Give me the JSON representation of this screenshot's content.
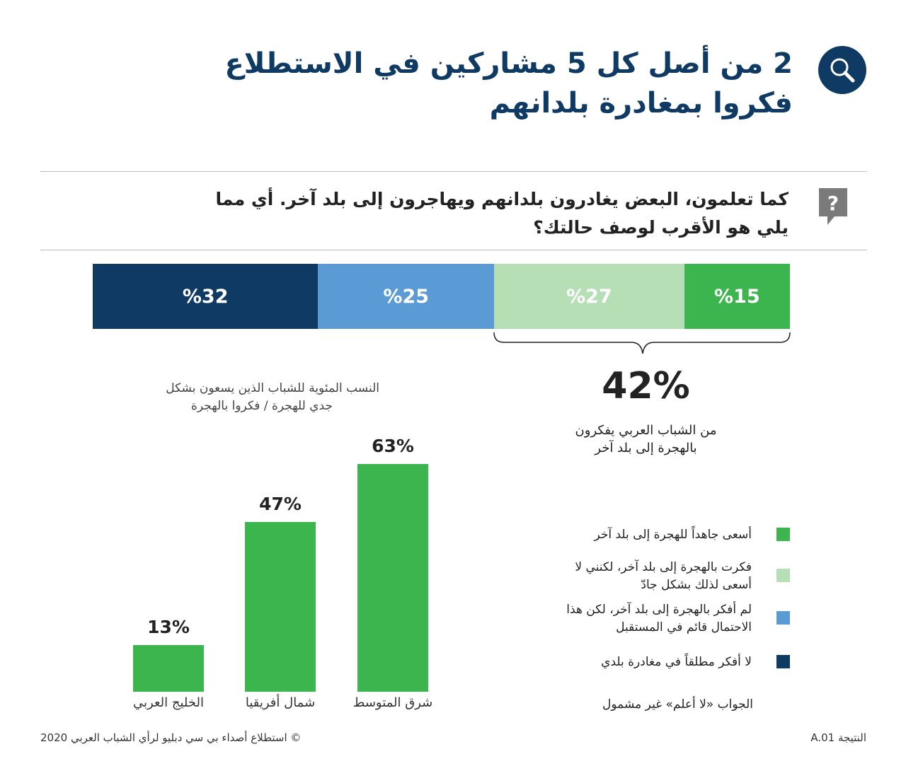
{
  "header": {
    "title_line1": "2 من أصل كل 5 مشاركين في الاستطلاع",
    "title_line2": "فكروا بمغادرة بلدانهم"
  },
  "question": {
    "line1": "كما تعلمون، البعض يغادرون بلدانهم ويهاجرون إلى بلد آخر. أي مما",
    "line2": "يلي هو الأقرب لوصف حالتك؟"
  },
  "highlight": {
    "value": "42%",
    "line1": "من الشباب العربي يفكرون",
    "line2": "بالهجرة إلى بلد آخر"
  },
  "colors": {
    "dark": "#0f3a64",
    "blue": "#5b9bd5",
    "light_green": "#b7dfb6",
    "green": "#3cb54f"
  },
  "chart_data": [
    {
      "type": "bar",
      "stacked": true,
      "segments": [
        {
          "label": "لا أفكر مطلقاً في مغادرة بلدي",
          "value": 32,
          "text": "%32",
          "color": "#0f3a64"
        },
        {
          "label": "لم أفكر بالهجرة إلى بلد آخر، لكن هذا الاحتمال قائم في المستقبل",
          "value": 25,
          "text": "%25",
          "color": "#5b9bd5"
        },
        {
          "label": "فكرت بالهجرة إلى بلد آخر، لكنني لا أسعى لذلك بشكل جادّ",
          "value": 27,
          "text": "%27",
          "color": "#b7dfb6"
        },
        {
          "label": "أسعى جاهداً للهجرة إلى بلد آخر",
          "value": 15,
          "text": "%15",
          "color": "#3cb54f"
        }
      ]
    },
    {
      "type": "bar",
      "title_line1": "النسب المئوية للشباب الذين يسعون بشكل",
      "title_line2": "جدي للهجرة / فكروا بالهجرة",
      "categories": [
        "الخليج العربي",
        "شمال أفريقيا",
        "شرق المتوسط"
      ],
      "values": [
        13,
        47,
        63
      ],
      "labels": [
        "13%",
        "47%",
        "63%"
      ],
      "ylim": [
        0,
        63
      ]
    }
  ],
  "legend": [
    {
      "line1": "أسعى جاهداً للهجرة إلى بلد آخر",
      "line2": "",
      "color": "#3cb54f"
    },
    {
      "line1": "فكرت بالهجرة إلى بلد آخر، لكنني لا",
      "line2": "أسعى لذلك بشكل جادّ",
      "color": "#b7dfb6"
    },
    {
      "line1": "لم أفكر بالهجرة إلى بلد آخر، لكن هذا",
      "line2": "الاحتمال قائم في المستقبل",
      "color": "#5b9bd5"
    },
    {
      "line1": "لا أفكر مطلقاً في مغادرة بلدي",
      "line2": "",
      "color": "#0f3a64"
    }
  ],
  "note": "الجواب «لا أعلم» غير مشمول",
  "footer": {
    "source": "© استطلاع أصداء بي سي دبليو لرأي الشباب العربي 2020",
    "result_id": "النتيجة A.01"
  }
}
